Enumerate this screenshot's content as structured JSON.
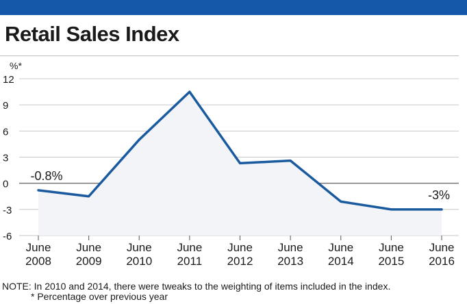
{
  "colors": {
    "top_bar": "#1557a8",
    "line": "#1a5a9e",
    "area_fill": "#f2f4f7",
    "grid": "#c8c8c8",
    "zero_line": "#777777",
    "text": "#1a1a1a"
  },
  "header": {
    "title": "Retail Sales Index"
  },
  "chart_data": {
    "type": "line",
    "title": "Retail Sales Index",
    "ylabel": "%*",
    "xlabel": "",
    "ylim": [
      -6,
      12
    ],
    "yticks": [
      "12",
      "9",
      "6",
      "3",
      "0",
      "-3",
      "-6"
    ],
    "categories": [
      [
        "June",
        "2008"
      ],
      [
        "June",
        "2009"
      ],
      [
        "June",
        "2010"
      ],
      [
        "June",
        "2011"
      ],
      [
        "June",
        "2012"
      ],
      [
        "June",
        "2013"
      ],
      [
        "June",
        "2014"
      ],
      [
        "June",
        "2015"
      ],
      [
        "June",
        "2016"
      ]
    ],
    "values": [
      -0.8,
      -1.5,
      5.0,
      10.5,
      2.3,
      2.6,
      -2.1,
      -3.0,
      -3.0
    ],
    "grid": true,
    "area_fill": true,
    "annotations": [
      {
        "text": "-0.8%",
        "index": 0
      },
      {
        "text": "-3%",
        "index": 8
      }
    ]
  },
  "footer": {
    "note": "NOTE: In 2010 and 2014, there were tweaks to the weighting of items included in the index.",
    "footnote": "* Percentage over previous year"
  }
}
